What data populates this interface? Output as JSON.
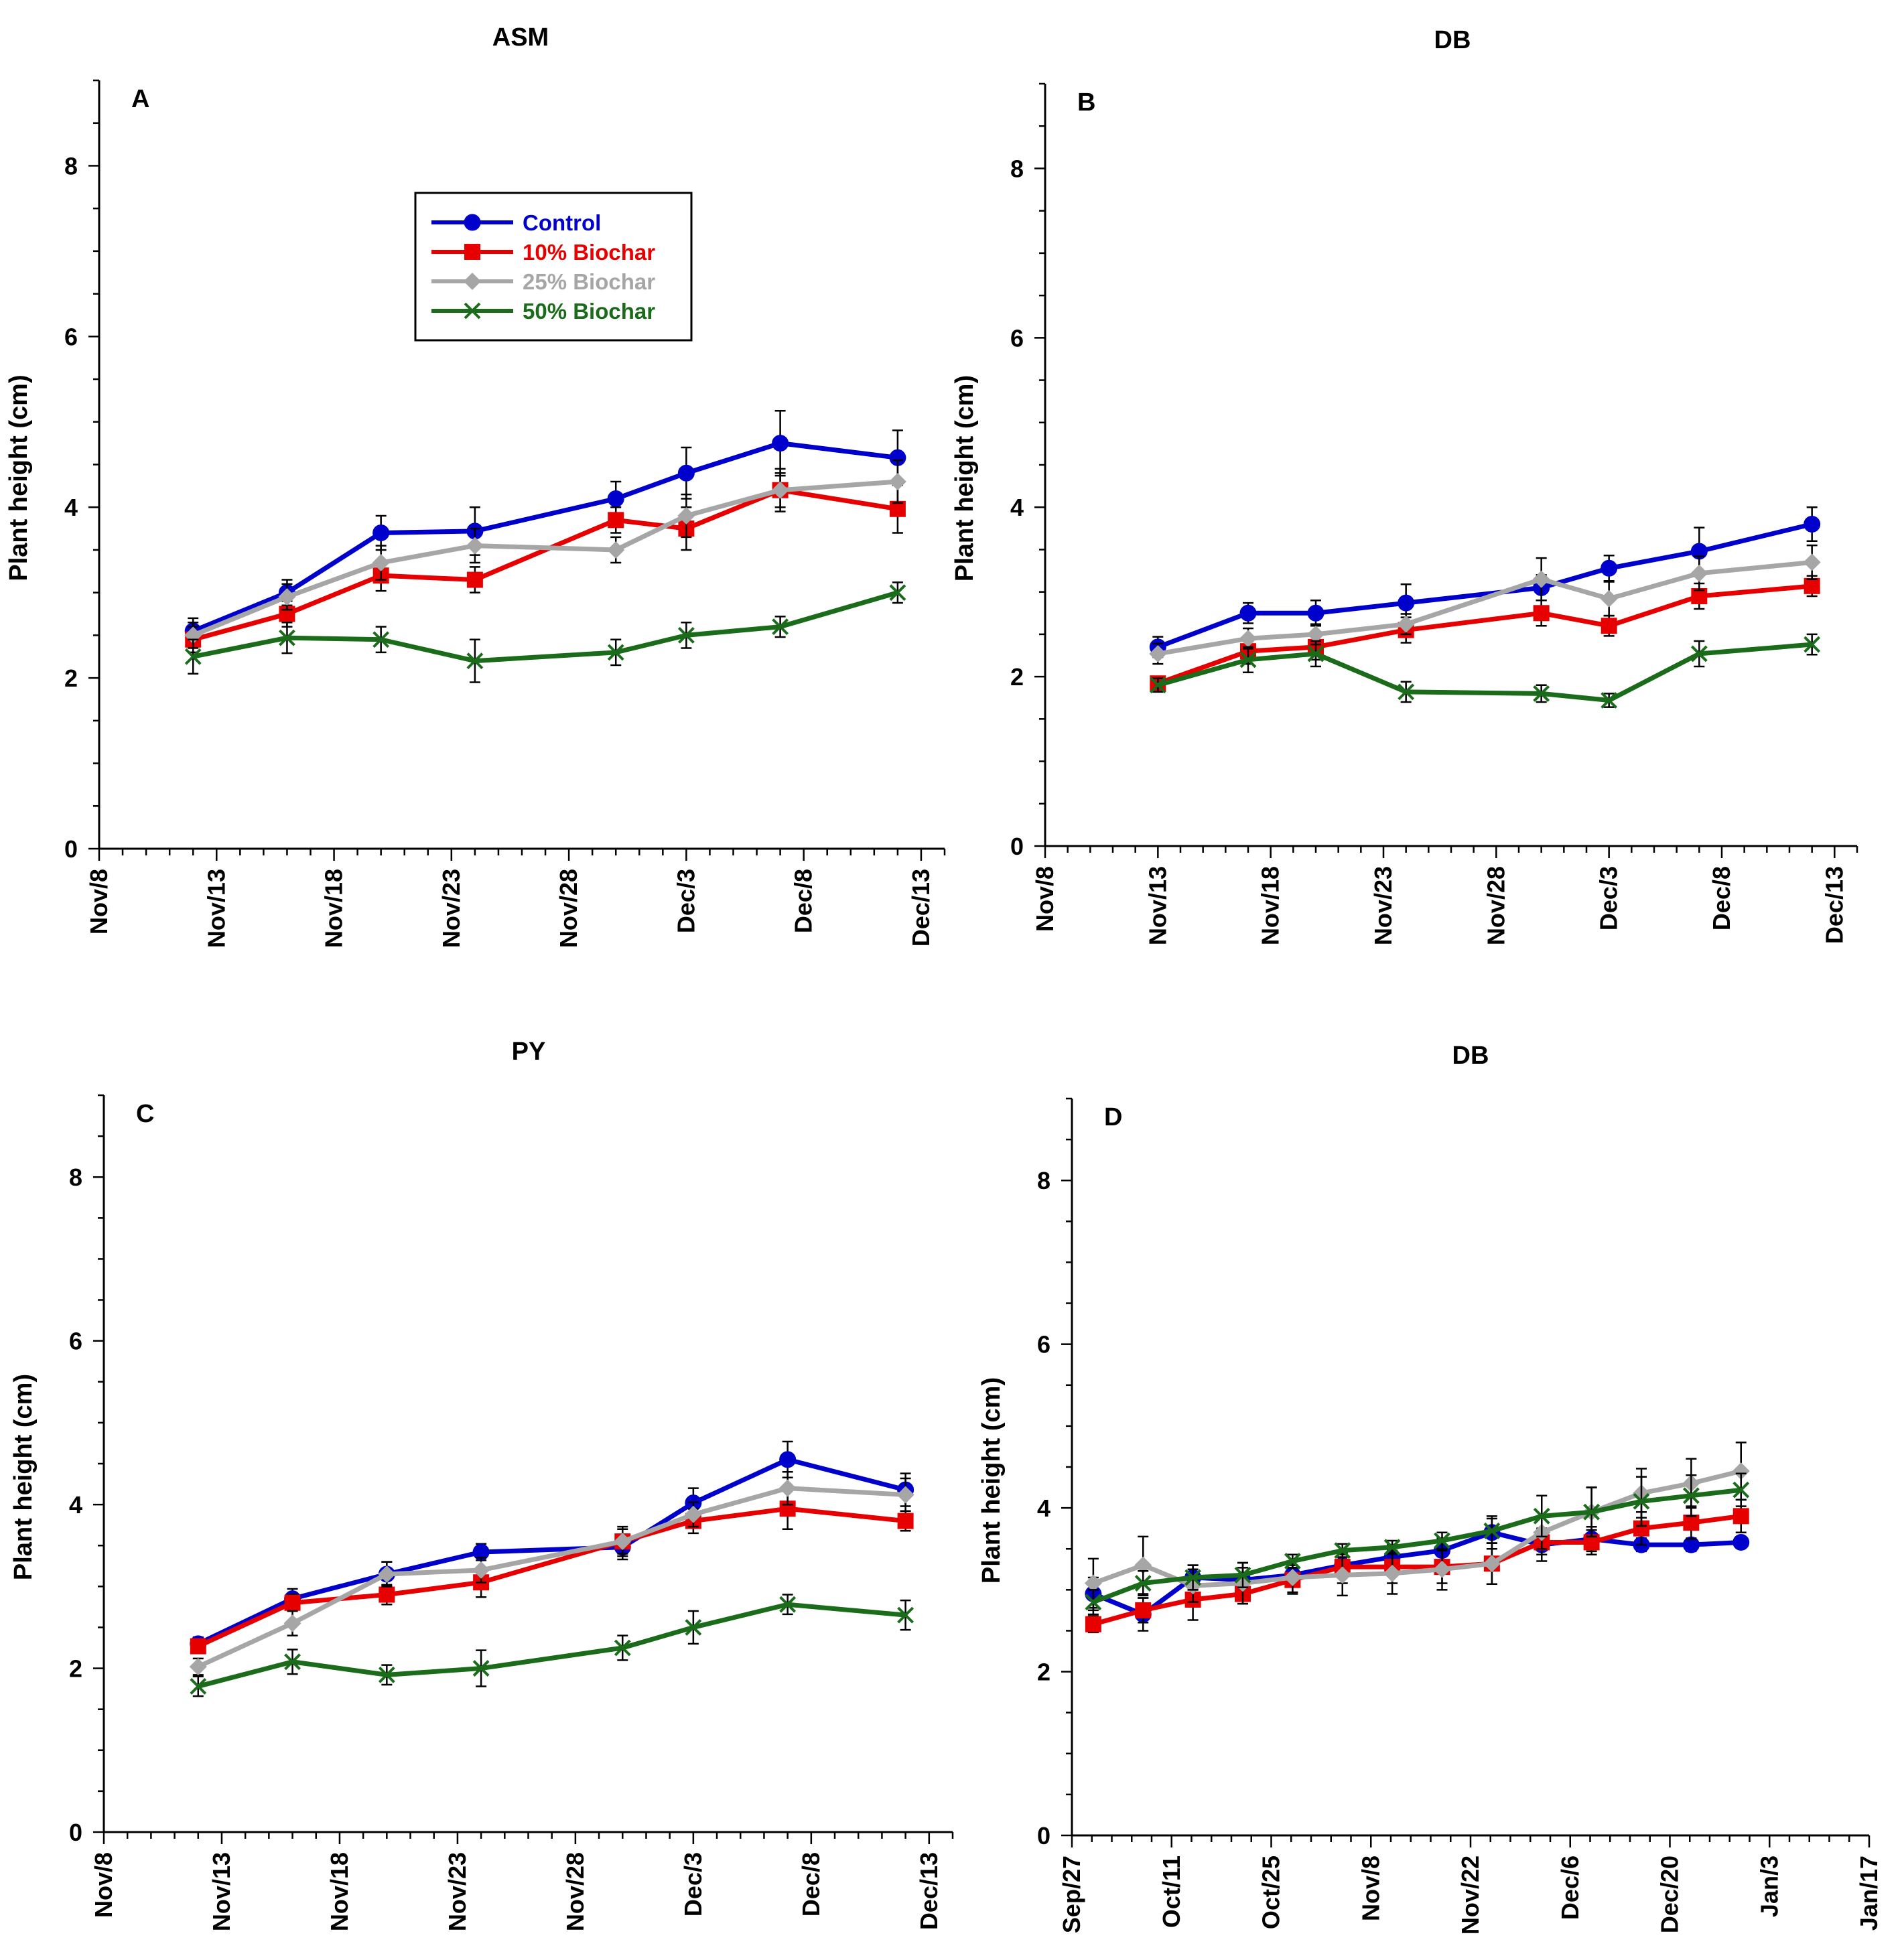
{
  "chart_data": [
    {
      "type": "line",
      "panel_label": "A",
      "title": "ASM",
      "ylabel": "Plant height (cm)",
      "ylim": [
        0,
        9
      ],
      "yticks": [
        0,
        2,
        4,
        6,
        8
      ],
      "xlim": [
        0,
        36
      ],
      "xticks": [
        0,
        5,
        10,
        15,
        20,
        25,
        30,
        35
      ],
      "xtick_labels": [
        "Nov/8",
        "Nov/13",
        "Nov/18",
        "Nov/23",
        "Nov/28",
        "Dec/3",
        "Dec/8",
        "Dec/13"
      ],
      "x": [
        4,
        8,
        12,
        16,
        22,
        25,
        29,
        34
      ],
      "series": [
        {
          "name": "Control",
          "color": "#0000cc",
          "marker": "circle",
          "values": [
            2.55,
            3.0,
            3.7,
            3.72,
            4.1,
            4.4,
            4.75,
            4.58
          ],
          "err": [
            0.15,
            0.15,
            0.2,
            0.28,
            0.2,
            0.3,
            0.38,
            0.32
          ]
        },
        {
          "name": "10% Biochar",
          "color": "#e60000",
          "marker": "square",
          "values": [
            2.45,
            2.75,
            3.2,
            3.15,
            3.85,
            3.75,
            4.2,
            3.98
          ],
          "err": [
            0.15,
            0.15,
            0.18,
            0.15,
            0.15,
            0.25,
            0.25,
            0.28
          ]
        },
        {
          "name": "25% Biochar",
          "color": "#a6a6a6",
          "marker": "diamond",
          "values": [
            2.5,
            2.95,
            3.35,
            3.55,
            3.5,
            3.9,
            4.2,
            4.3
          ],
          "err": [
            0.15,
            0.15,
            0.2,
            0.2,
            0.15,
            0.25,
            0.2,
            0.25
          ]
        },
        {
          "name": "50% Biochar",
          "color": "#1a6b1a",
          "marker": "x",
          "values": [
            2.25,
            2.47,
            2.45,
            2.2,
            2.3,
            2.5,
            2.6,
            3.0
          ],
          "err": [
            0.2,
            0.18,
            0.15,
            0.25,
            0.15,
            0.15,
            0.12,
            0.12
          ]
        }
      ]
    },
    {
      "type": "line",
      "panel_label": "B",
      "title": "DB",
      "ylabel": "Plant height (cm)",
      "ylim": [
        0,
        9
      ],
      "yticks": [
        0,
        2,
        4,
        6,
        8
      ],
      "xlim": [
        0,
        36
      ],
      "xticks": [
        0,
        5,
        10,
        15,
        20,
        25,
        30,
        35
      ],
      "xtick_labels": [
        "Nov/8",
        "Nov/13",
        "Nov/18",
        "Nov/23",
        "Nov/28",
        "Dec/3",
        "Dec/8",
        "Dec/13"
      ],
      "x": [
        5,
        9,
        12,
        16,
        22,
        25,
        29,
        34
      ],
      "series": [
        {
          "name": "Control",
          "color": "#0000cc",
          "marker": "circle",
          "values": [
            2.35,
            2.75,
            2.75,
            2.87,
            3.05,
            3.28,
            3.48,
            3.8
          ],
          "err": [
            0.12,
            0.12,
            0.15,
            0.22,
            0.15,
            0.15,
            0.28,
            0.2
          ]
        },
        {
          "name": "10% Biochar",
          "color": "#e60000",
          "marker": "square",
          "values": [
            1.92,
            2.3,
            2.35,
            2.55,
            2.75,
            2.6,
            2.95,
            3.07
          ],
          "err": [
            0.08,
            0.15,
            0.15,
            0.15,
            0.15,
            0.12,
            0.15,
            0.12
          ]
        },
        {
          "name": "25% Biochar",
          "color": "#a6a6a6",
          "marker": "diamond",
          "values": [
            2.27,
            2.45,
            2.5,
            2.62,
            3.15,
            2.92,
            3.22,
            3.35
          ],
          "err": [
            0.12,
            0.12,
            0.12,
            0.12,
            0.25,
            0.2,
            0.2,
            0.2
          ]
        },
        {
          "name": "50% Biochar",
          "color": "#1a6b1a",
          "marker": "x",
          "values": [
            1.9,
            2.2,
            2.27,
            1.82,
            1.8,
            1.72,
            2.27,
            2.38
          ],
          "err": [
            0.08,
            0.15,
            0.15,
            0.12,
            0.1,
            0.08,
            0.15,
            0.12
          ]
        }
      ]
    },
    {
      "type": "line",
      "panel_label": "C",
      "title": "PY",
      "ylabel": "Plant height (cm)",
      "ylim": [
        0,
        9
      ],
      "yticks": [
        0,
        2,
        4,
        6,
        8
      ],
      "xlim": [
        0,
        36
      ],
      "xticks": [
        0,
        5,
        10,
        15,
        20,
        25,
        30,
        35
      ],
      "xtick_labels": [
        "Nov/8",
        "Nov/13",
        "Nov/18",
        "Nov/23",
        "Nov/28",
        "Dec/3",
        "Dec/8",
        "Dec/13"
      ],
      "x": [
        4,
        8,
        12,
        16,
        22,
        25,
        29,
        34
      ],
      "series": [
        {
          "name": "Control",
          "color": "#0000cc",
          "marker": "circle",
          "values": [
            2.3,
            2.85,
            3.15,
            3.42,
            3.48,
            4.02,
            4.55,
            4.18
          ],
          "err": [
            0.08,
            0.12,
            0.15,
            0.1,
            0.15,
            0.18,
            0.22,
            0.2
          ]
        },
        {
          "name": "10% Biochar",
          "color": "#e60000",
          "marker": "square",
          "values": [
            2.27,
            2.8,
            2.9,
            3.05,
            3.55,
            3.8,
            3.95,
            3.8
          ],
          "err": [
            0.08,
            0.1,
            0.12,
            0.18,
            0.18,
            0.15,
            0.25,
            0.12
          ]
        },
        {
          "name": "25% Biochar",
          "color": "#a6a6a6",
          "marker": "diamond",
          "values": [
            2.02,
            2.55,
            3.15,
            3.2,
            3.55,
            3.88,
            4.2,
            4.12
          ],
          "err": [
            0.1,
            0.15,
            0.15,
            0.15,
            0.15,
            0.15,
            0.2,
            0.2
          ]
        },
        {
          "name": "50% Biochar",
          "color": "#1a6b1a",
          "marker": "x",
          "values": [
            1.78,
            2.08,
            1.92,
            2.0,
            2.25,
            2.5,
            2.78,
            2.65
          ],
          "err": [
            0.12,
            0.15,
            0.12,
            0.22,
            0.15,
            0.2,
            0.12,
            0.18
          ]
        }
      ]
    },
    {
      "type": "line",
      "panel_label": "D",
      "title": "DB",
      "ylabel": "Plant height (cm)",
      "ylim": [
        0,
        9
      ],
      "yticks": [
        0,
        2,
        4,
        6,
        8
      ],
      "xlim": [
        0,
        112
      ],
      "xticks": [
        0,
        14,
        28,
        42,
        56,
        70,
        84,
        98,
        112
      ],
      "xtick_labels": [
        "Sep/27",
        "Oct/11",
        "Oct/25",
        "Nov/8",
        "Nov/22",
        "Dec/6",
        "Dec/20",
        "Jan/3",
        "Jan/17"
      ],
      "x": [
        3,
        10,
        17,
        24,
        31,
        38,
        45,
        52,
        59,
        66,
        73,
        80,
        87,
        94
      ],
      "series": [
        {
          "name": "Control",
          "color": "#0000cc",
          "marker": "circle",
          "values": [
            2.95,
            2.7,
            3.15,
            3.12,
            3.18,
            3.3,
            3.4,
            3.48,
            3.7,
            3.55,
            3.62,
            3.55,
            3.55,
            3.58
          ],
          "err": [
            0.2,
            0.2,
            0.15,
            0.15,
            0.12,
            0.15,
            0.15,
            0.15,
            0.2,
            0.2,
            0.15,
            0.08,
            0.08,
            0.05
          ]
        },
        {
          "name": "10% Biochar",
          "color": "#e60000",
          "marker": "square",
          "values": [
            2.58,
            2.75,
            2.88,
            2.95,
            3.12,
            3.28,
            3.28,
            3.28,
            3.32,
            3.58,
            3.58,
            3.75,
            3.82,
            3.9
          ],
          "err": [
            0.1,
            0.15,
            0.25,
            0.12,
            0.15,
            0.2,
            0.2,
            0.2,
            0.25,
            0.15,
            0.15,
            0.2,
            0.2,
            0.2
          ]
        },
        {
          "name": "25% Biochar",
          "color": "#a6a6a6",
          "marker": "diamond",
          "values": [
            3.08,
            3.3,
            3.05,
            3.08,
            3.15,
            3.18,
            3.2,
            3.25,
            3.32,
            3.7,
            3.95,
            4.18,
            4.3,
            4.45
          ],
          "err": [
            0.3,
            0.35,
            0.2,
            0.25,
            0.2,
            0.25,
            0.25,
            0.25,
            0.25,
            0.2,
            0.3,
            0.3,
            0.3,
            0.35
          ]
        },
        {
          "name": "50% Biochar",
          "color": "#1a6b1a",
          "marker": "x",
          "values": [
            2.85,
            3.08,
            3.15,
            3.18,
            3.35,
            3.48,
            3.52,
            3.6,
            3.72,
            3.9,
            3.95,
            4.08,
            4.15,
            4.22
          ],
          "err": [
            0.15,
            0.15,
            0.15,
            0.15,
            0.08,
            0.08,
            0.08,
            0.1,
            0.15,
            0.25,
            0.3,
            0.3,
            0.25,
            0.2
          ]
        }
      ]
    }
  ],
  "legend": {
    "location": "panel A, top-center",
    "entries": [
      {
        "label": "Control",
        "color": "#0000cc",
        "marker": "circle"
      },
      {
        "label": "10% Biochar",
        "color": "#e60000",
        "marker": "square"
      },
      {
        "label": "25% Biochar",
        "color": "#a6a6a6",
        "marker": "diamond"
      },
      {
        "label": "50% Biochar",
        "color": "#1a6b1a",
        "marker": "x"
      }
    ]
  }
}
